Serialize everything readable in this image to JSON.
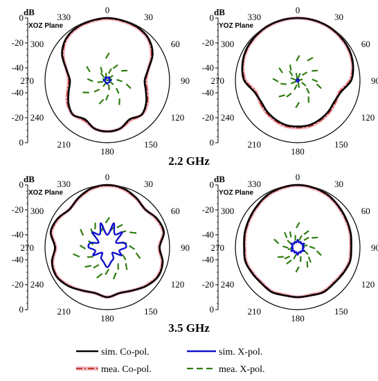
{
  "figure": {
    "frequency_labels": [
      "2.2 GHz",
      "3.5 GHz"
    ],
    "radial_unit": "dB",
    "radial_ticks": [
      "0",
      "-20",
      "-40",
      "-40",
      "-20",
      "0"
    ],
    "angle_labels": [
      "0",
      "30",
      "60",
      "90",
      "120",
      "150",
      "180",
      "210",
      "240",
      "270",
      "300",
      "330"
    ]
  },
  "legend": {
    "sim_co": "sim. Co-pol.",
    "sim_x": "sim. X-pol.",
    "mea_co": "mea. Co-pol.",
    "mea_x": "mea. X-pol."
  },
  "colors": {
    "sim_co": "#000000",
    "sim_x": "#1010cc",
    "mea_co": "#c0392b",
    "mea_x": "#2e7d10",
    "mea_co_shadow": "#f2b8c6"
  },
  "chart_data": [
    {
      "type": "line",
      "subtype": "polar",
      "plane": "XOZ Plane",
      "frequency": "2.2 GHz",
      "angles": [
        0,
        15,
        30,
        45,
        60,
        75,
        90,
        105,
        120,
        135,
        150,
        165,
        180,
        195,
        210,
        225,
        240,
        255,
        270,
        285,
        300,
        315,
        330,
        345
      ],
      "series": [
        {
          "name": "sim. Co-pol.",
          "values": [
            0,
            -0.5,
            -1,
            -3,
            -8,
            -16,
            -20,
            -18,
            -14,
            -11,
            -14,
            -10,
            -9,
            -10,
            -14,
            -11,
            -14,
            -18,
            -20,
            -16,
            -8,
            -3,
            -1,
            -0.5
          ]
        },
        {
          "name": "mea. Co-pol.",
          "values": [
            -0.5,
            -1,
            -1.5,
            -3.5,
            -9,
            -16,
            -19,
            -17,
            -13,
            -11,
            -13,
            -10,
            -9,
            -10,
            -13,
            -11,
            -13,
            -17,
            -19,
            -16,
            -9,
            -3.5,
            -1.5,
            -1
          ]
        },
        {
          "name": "sim. X-pol.",
          "values": [
            -48,
            -48,
            -47,
            -48,
            -48,
            -48,
            -47,
            -48,
            -48,
            -48,
            -48,
            -48,
            -47,
            -48,
            -48,
            -48,
            -48,
            -48,
            -47,
            -48,
            -48,
            -48,
            -47,
            -48
          ]
        },
        {
          "name": "mea. X-pol.",
          "values": [
            -28,
            -40,
            -35,
            -44,
            -32,
            -46,
            -38,
            -30,
            -44,
            -36,
            -28,
            -42,
            -34,
            -30,
            -44,
            -36,
            -28,
            -42,
            -34,
            -46,
            -30,
            -42,
            -38,
            -44
          ]
        }
      ],
      "rlim": [
        -50,
        0
      ]
    },
    {
      "type": "line",
      "subtype": "polar",
      "plane": "YOZ Plane",
      "frequency": "2.2 GHz",
      "angles": [
        0,
        15,
        30,
        45,
        60,
        75,
        90,
        105,
        120,
        135,
        150,
        165,
        180,
        195,
        210,
        225,
        240,
        255,
        270,
        285,
        300,
        315,
        330,
        345
      ],
      "series": [
        {
          "name": "sim. Co-pol.",
          "values": [
            0,
            0,
            -0.3,
            -1,
            -2,
            -4,
            -7,
            -14,
            -16,
            -15,
            -14,
            -13,
            -13,
            -13,
            -14,
            -15,
            -16,
            -14,
            -7,
            -4,
            -2,
            -1,
            -0.3,
            0
          ]
        },
        {
          "name": "mea. Co-pol.",
          "values": [
            0,
            -0.3,
            -0.6,
            -1.5,
            -2.5,
            -4.5,
            -8,
            -15,
            -15,
            -14,
            -13,
            -12,
            -12,
            -12,
            -13,
            -14,
            -15,
            -15,
            -8,
            -4.5,
            -2.5,
            -1.5,
            -0.6,
            -0.3
          ]
        },
        {
          "name": "sim. X-pol.",
          "values": [
            -49,
            -49,
            -49,
            -49,
            -49,
            -49,
            -49,
            -49,
            -49,
            -49,
            -49,
            -49,
            -49,
            -49,
            -49,
            -49,
            -49,
            -49,
            -49,
            -49,
            -49,
            -49,
            -49,
            -49
          ]
        },
        {
          "name": "mea. X-pol.",
          "values": [
            -30,
            -44,
            -28,
            -40,
            -32,
            -46,
            -34,
            -30,
            -42,
            -36,
            -30,
            -44,
            -28,
            -42,
            -34,
            -30,
            -44,
            -36,
            -30,
            -44,
            -32,
            -40,
            -36,
            -44
          ]
        }
      ],
      "rlim": [
        -50,
        0
      ]
    },
    {
      "type": "line",
      "subtype": "polar",
      "plane": "XOZ Plane",
      "frequency": "3.5 GHz",
      "angles": [
        0,
        15,
        30,
        45,
        60,
        75,
        90,
        105,
        120,
        135,
        150,
        165,
        180,
        195,
        210,
        225,
        240,
        255,
        270,
        285,
        300,
        315,
        330,
        345
      ],
      "series": [
        {
          "name": "sim. Co-pol.",
          "values": [
            0,
            -1,
            -4,
            -7,
            -4,
            -3,
            -8,
            -4,
            -3,
            -6,
            -10,
            -12,
            -10,
            -12,
            -10,
            -6,
            -3,
            -4,
            -8,
            -3,
            -4,
            -7,
            -4,
            -1
          ]
        },
        {
          "name": "mea. Co-pol.",
          "values": [
            -0.5,
            -1.5,
            -4.5,
            -7,
            -4.5,
            -3.5,
            -8.5,
            -4.5,
            -3.5,
            -6.5,
            -10,
            -12,
            -10,
            -12,
            -10,
            -6.5,
            -3.5,
            -4.5,
            -8.5,
            -3.5,
            -4.5,
            -7,
            -4.5,
            -1.5
          ]
        },
        {
          "name": "sim. X-pol.",
          "values": [
            -40,
            -30,
            -38,
            -33,
            -42,
            -36,
            -35,
            -40,
            -37,
            -44,
            -40,
            -38,
            -34,
            -38,
            -40,
            -44,
            -37,
            -40,
            -35,
            -36,
            -42,
            -33,
            -38,
            -30
          ]
        },
        {
          "name": "mea. X-pol.",
          "values": [
            -26,
            -32,
            -28,
            -30,
            -24,
            -34,
            -28,
            -22,
            -32,
            -26,
            -30,
            -24,
            -28,
            -24,
            -30,
            -26,
            -32,
            -22,
            -28,
            -34,
            -24,
            -30,
            -28,
            -32
          ]
        }
      ],
      "rlim": [
        -50,
        0
      ]
    },
    {
      "type": "line",
      "subtype": "polar",
      "plane": "YOZ Plane",
      "frequency": "3.5 GHz",
      "angles": [
        0,
        15,
        30,
        45,
        60,
        75,
        90,
        105,
        120,
        135,
        150,
        165,
        180,
        195,
        210,
        225,
        240,
        255,
        270,
        285,
        300,
        315,
        330,
        345
      ],
      "series": [
        {
          "name": "sim. Co-pol.",
          "values": [
            0,
            -0.5,
            -1.5,
            -3.5,
            -5,
            -6,
            -7,
            -6.5,
            -8,
            -9,
            -8.5,
            -10,
            -10,
            -10,
            -8.5,
            -9,
            -8,
            -6.5,
            -7,
            -6,
            -5,
            -3.5,
            -1.5,
            -0.5
          ]
        },
        {
          "name": "mea. Co-pol.",
          "values": [
            -0.3,
            -1,
            -2,
            -4,
            -5.5,
            -6.5,
            -7.5,
            -7,
            -8.5,
            -9.5,
            -9,
            -10.5,
            -10,
            -10.5,
            -9,
            -9.5,
            -8.5,
            -7,
            -7.5,
            -6.5,
            -5.5,
            -4,
            -2,
            -1
          ]
        },
        {
          "name": "sim. X-pol.",
          "values": [
            -44,
            -46,
            -45,
            -46,
            -44,
            -46,
            -45,
            -46,
            -44,
            -46,
            -45,
            -46,
            -44,
            -46,
            -45,
            -46,
            -44,
            -46,
            -45,
            -46,
            -44,
            -46,
            -45,
            -46
          ]
        },
        {
          "name": "mea. X-pol.",
          "values": [
            -30,
            -40,
            -34,
            -38,
            -32,
            -42,
            -36,
            -30,
            -40,
            -34,
            -32,
            -38,
            -30,
            -40,
            -34,
            -36,
            -32,
            -42,
            -38,
            -30,
            -40,
            -34,
            -36,
            -40
          ]
        }
      ],
      "rlim": [
        -50,
        0
      ]
    }
  ]
}
